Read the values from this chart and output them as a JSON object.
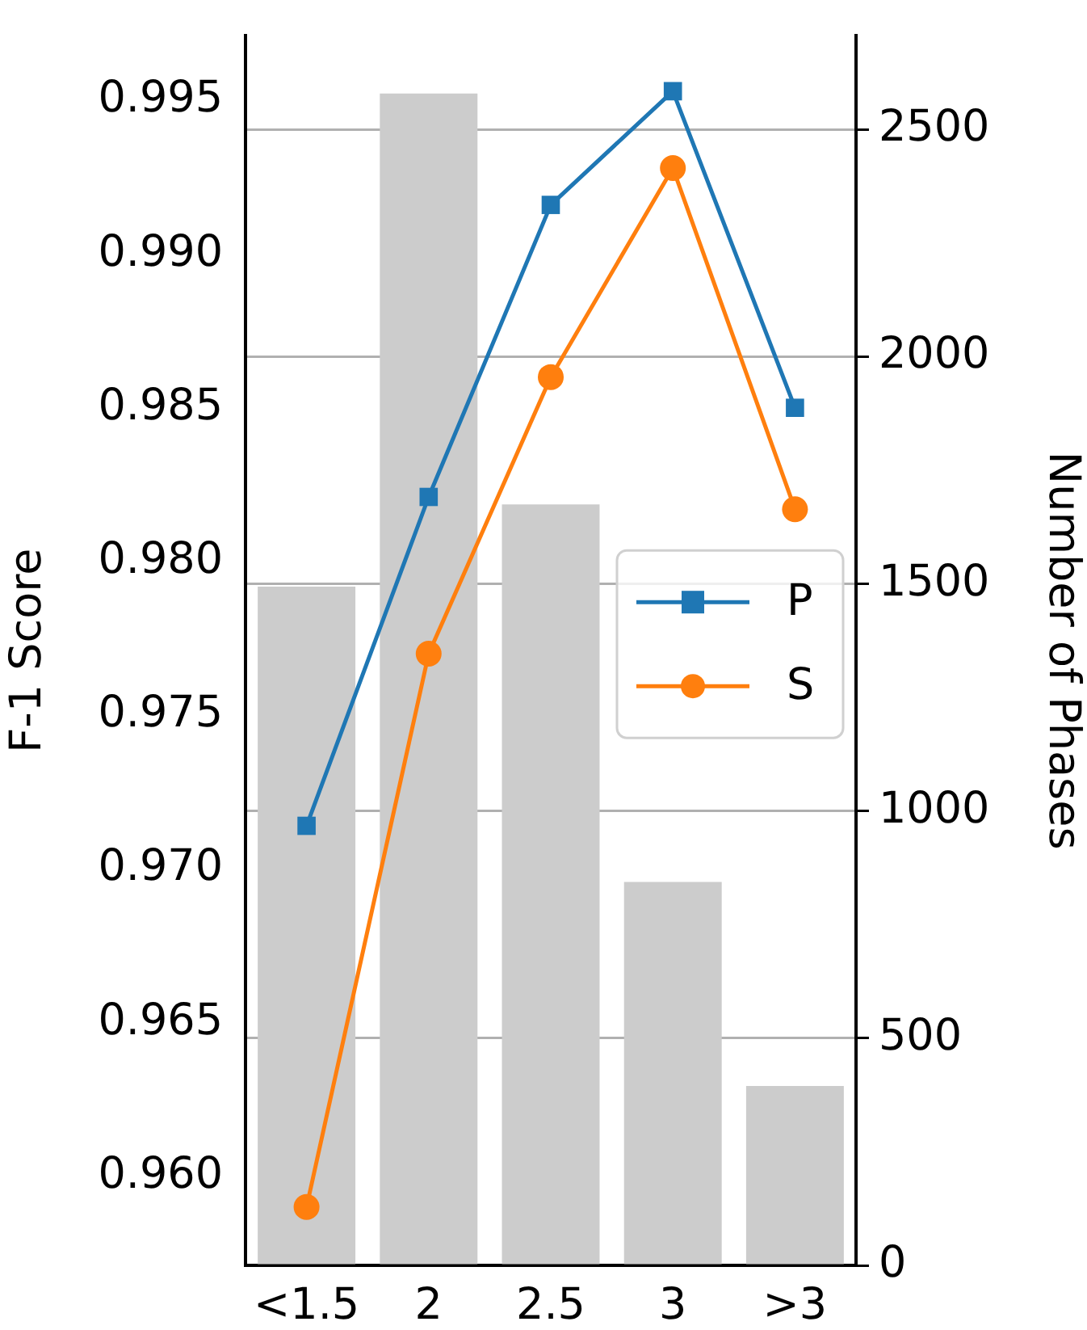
{
  "chart_data": {
    "type": "line",
    "categories": [
      "<1.5",
      "2",
      "2.5",
      "3",
      ">3"
    ],
    "ylabel": "F-1 Score",
    "y2label": "Number of Phases",
    "ylim": [
      0.9571,
      0.9971
    ],
    "yticks": [
      {
        "value": 0.96,
        "label": "0.960"
      },
      {
        "value": 0.965,
        "label": "0.965"
      },
      {
        "value": 0.97,
        "label": "0.970"
      },
      {
        "value": 0.975,
        "label": "0.975"
      },
      {
        "value": 0.98,
        "label": "0.980"
      },
      {
        "value": 0.985,
        "label": "0.985"
      },
      {
        "value": 0.99,
        "label": "0.990"
      },
      {
        "value": 0.995,
        "label": "0.995"
      }
    ],
    "y2lim": [
      0,
      2706
    ],
    "y2ticks": [
      0,
      500,
      1000,
      1500,
      2000,
      2500
    ],
    "grid": "y2",
    "legend": "center right",
    "series": [
      {
        "type": "bar",
        "axis": "y2",
        "color": "#cccccc",
        "values": [
          1494,
          2579,
          1675,
          844,
          395
        ]
      },
      {
        "name": "P",
        "color": "#1f77b4",
        "marker": "square",
        "values": [
          0.9714,
          0.9821,
          0.9916,
          0.9953,
          0.985
        ]
      },
      {
        "name": "S",
        "color": "#ff7f0e",
        "marker": "circle",
        "values": [
          0.959,
          0.977,
          0.986,
          0.9928,
          0.9817
        ]
      }
    ]
  }
}
